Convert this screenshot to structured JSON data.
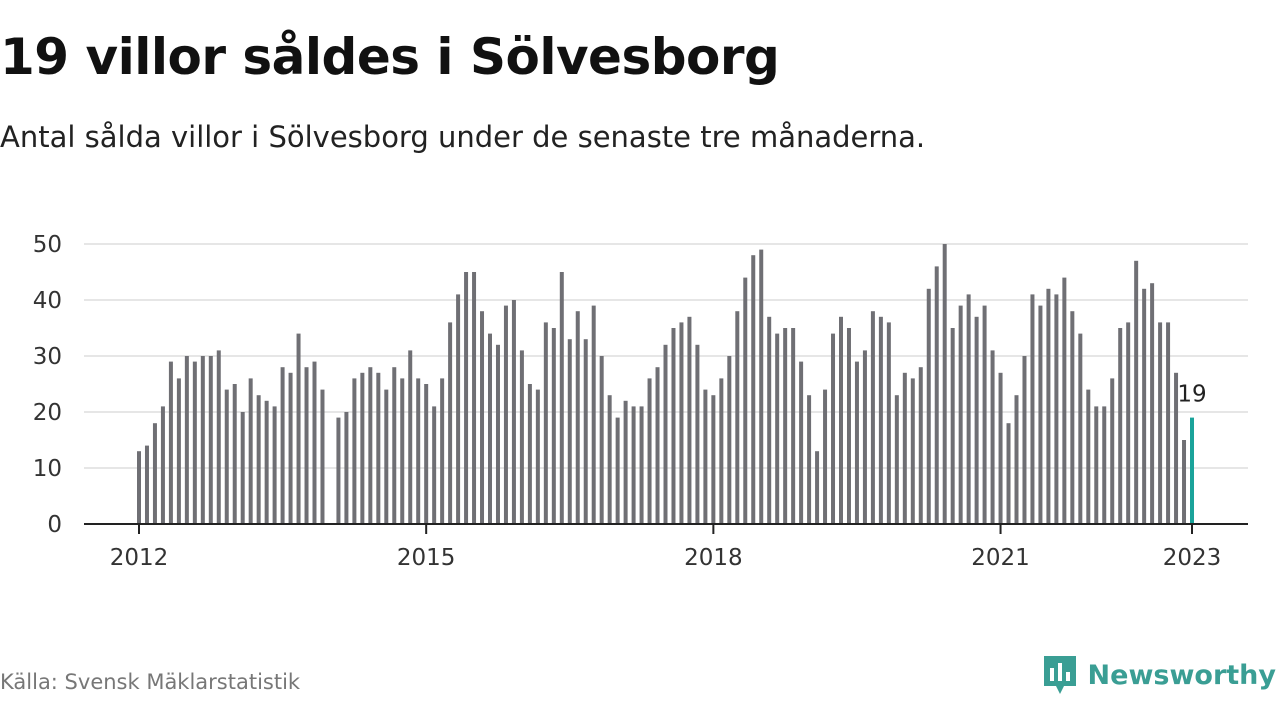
{
  "title": "19 villor såldes i Sölvesborg",
  "subtitle": "Antal sålda villor i Sölvesborg under de senaste tre månaderna.",
  "source": "Källa: Svensk Mäklarstatistik",
  "brand": {
    "name": "Newsworthy",
    "icon": "newsworthy-logo-icon",
    "color": "#3a9e94"
  },
  "colors": {
    "bar": "#6f6f74",
    "highlight": "#1aa39a",
    "grid": "#dddddd",
    "axis": "#222222"
  },
  "chart_data": {
    "type": "bar",
    "title": "19 villor såldes i Sölvesborg",
    "xlabel": "",
    "ylabel": "",
    "ylim": [
      0,
      50
    ],
    "yticks": [
      0,
      10,
      20,
      30,
      40,
      50
    ],
    "grid": true,
    "legend": "none",
    "start_month": "2012-01",
    "end_month": "2023-01",
    "xticks": [
      {
        "label": "2012",
        "month": "2012-01"
      },
      {
        "label": "2015",
        "month": "2015-01"
      },
      {
        "label": "2018",
        "month": "2018-01"
      },
      {
        "label": "2021",
        "month": "2021-01"
      },
      {
        "label": "2023",
        "month": "2023-01"
      }
    ],
    "values": [
      13,
      14,
      18,
      21,
      29,
      26,
      30,
      29,
      30,
      30,
      31,
      24,
      25,
      20,
      26,
      23,
      22,
      21,
      28,
      27,
      34,
      28,
      29,
      24,
      null,
      19,
      20,
      26,
      27,
      28,
      27,
      24,
      28,
      26,
      31,
      26,
      25,
      21,
      26,
      36,
      41,
      45,
      45,
      38,
      34,
      32,
      39,
      40,
      31,
      25,
      24,
      36,
      35,
      45,
      33,
      38,
      33,
      39,
      30,
      23,
      19,
      22,
      21,
      21,
      26,
      28,
      32,
      35,
      36,
      37,
      32,
      24,
      23,
      26,
      30,
      38,
      44,
      48,
      49,
      37,
      34,
      35,
      35,
      29,
      23,
      13,
      24,
      34,
      37,
      35,
      29,
      31,
      38,
      37,
      36,
      23,
      27,
      26,
      28,
      42,
      46,
      50,
      35,
      39,
      41,
      37,
      39,
      31,
      27,
      18,
      23,
      30,
      41,
      39,
      42,
      41,
      44,
      38,
      34,
      24,
      21,
      21,
      26,
      35,
      36,
      47,
      42,
      43,
      36,
      36,
      27,
      15,
      19
    ],
    "highlight": {
      "month": "2023-01",
      "value": 19,
      "label": "19"
    }
  }
}
